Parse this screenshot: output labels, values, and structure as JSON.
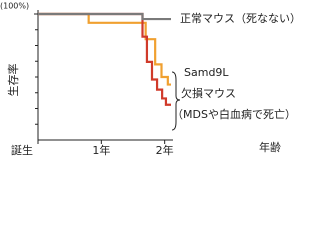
{
  "chart_data": {
    "type": "line",
    "step": true,
    "ylabel": "生存率",
    "xlabel": "年齢",
    "xlim": [
      0,
      2.1
    ],
    "ylim": [
      0,
      100
    ],
    "xticks": [
      {
        "value": 0,
        "label": "誕生"
      },
      {
        "value": 1,
        "label": "1年"
      },
      {
        "value": 2,
        "label": "2年"
      }
    ],
    "yticks": [
      {
        "value": 100,
        "label": "(100%)"
      }
    ],
    "series": [
      {
        "name": "正常マウス（死なない）",
        "color": "#7a7a7a",
        "x": [
          0,
          1.65,
          2.1
        ],
        "values": [
          100,
          96,
          96
        ]
      },
      {
        "name": "Samd9L",
        "color": "#f0a030",
        "x": [
          0,
          0.8,
          1.7,
          1.85,
          1.95,
          2.05
        ],
        "values": [
          100,
          93,
          80,
          60,
          50,
          44
        ]
      },
      {
        "name": "欠損マウス",
        "color": "#d03a2a",
        "x": [
          0,
          1.65,
          1.72,
          1.8,
          1.88,
          1.96,
          2.02
        ],
        "values": [
          100,
          82,
          62,
          48,
          40,
          33,
          28
        ]
      }
    ],
    "annotation": "（MDSや白血病で死亡）"
  }
}
